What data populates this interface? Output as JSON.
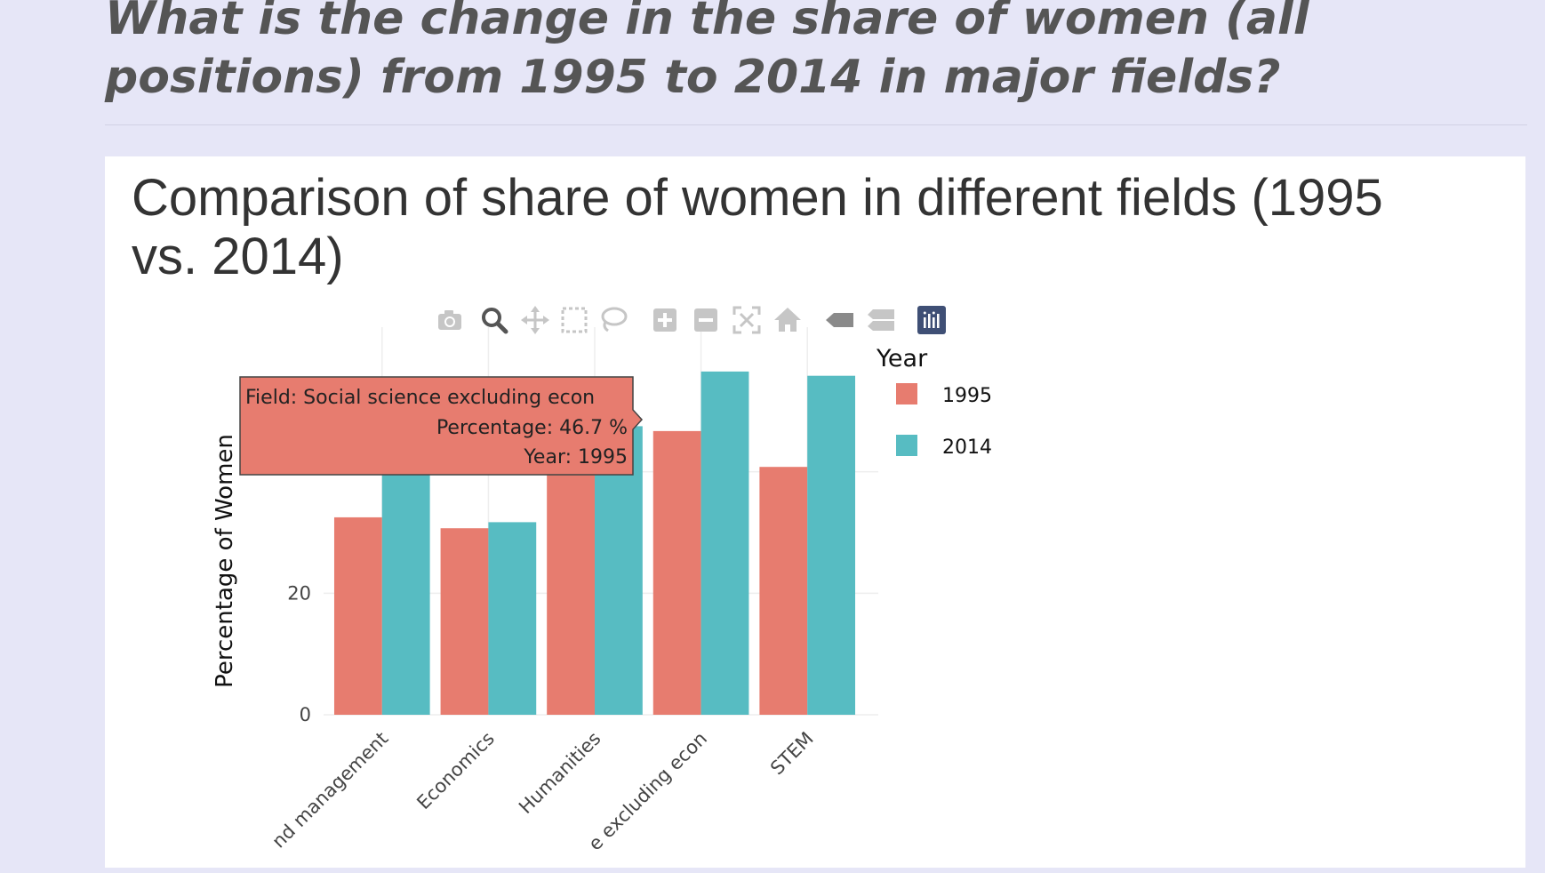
{
  "question": "What is the change in the share of women (all positions) from 1995 to 2014 in major fields?",
  "chart_title_line1": "Comparison of share of women in different fields (1995",
  "chart_title_line2": "vs. 2014)",
  "modebar": [
    "camera-icon",
    "zoom-icon",
    "pan-icon",
    "box-select-icon",
    "lasso-icon",
    "zoom-in-icon",
    "zoom-out-icon",
    "autoscale-icon",
    "reset-axes-icon",
    "hover-closest-icon",
    "hover-compare-icon",
    "plotly-logo-icon"
  ],
  "tooltip": {
    "line1": "Field:  Social science excluding econ",
    "line2": "Percentage:  46.7 %",
    "line3": "Year:  1995"
  },
  "colors": {
    "series_1995": "#e77c6f",
    "series_2014": "#57bcc2",
    "grid": "#eeeeee",
    "text": "#444444"
  },
  "chart_data": {
    "type": "bar",
    "ylabel": "Percentage of Women",
    "xlabel": "",
    "ylim": [
      0,
      60
    ],
    "yticks": [
      0,
      20
    ],
    "categories": [
      "nd management",
      "Economics",
      "Humanities",
      "e excluding econ",
      "STEM"
    ],
    "legend_title": "Year",
    "legend_position": "top-right",
    "series": [
      {
        "name": "1995",
        "values": [
          32.5,
          30.7,
          46.5,
          46.7,
          40.8
        ]
      },
      {
        "name": "2014",
        "values": [
          47.0,
          31.7,
          47.5,
          56.5,
          55.8
        ]
      }
    ]
  }
}
